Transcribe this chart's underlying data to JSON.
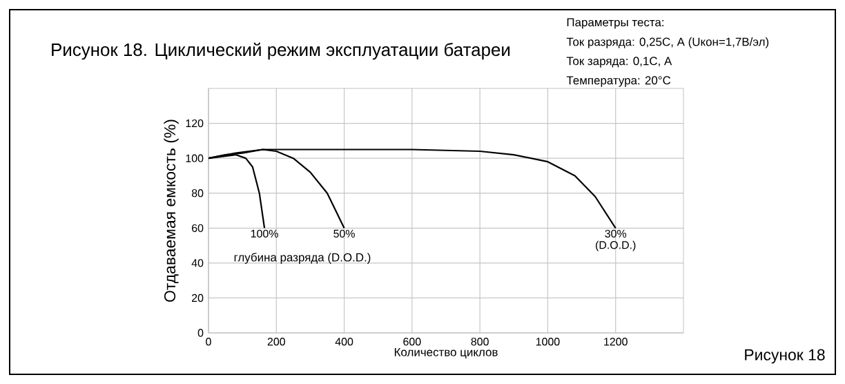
{
  "chart_data": {
    "type": "line",
    "title": "Рисунок 18. Циклический режим эксплуатации батареи",
    "xlabel": "Количество циклов",
    "ylabel": "Отдаваемая емкость (%)",
    "xlim": [
      0,
      1400
    ],
    "ylim": [
      0,
      140
    ],
    "xticks": [
      0,
      200,
      400,
      600,
      800,
      1000,
      1200
    ],
    "yticks": [
      0,
      20,
      40,
      60,
      80,
      100,
      120
    ],
    "grid": true,
    "marker": "none",
    "line_style": "solid",
    "series": [
      {
        "color": "#000000",
        "x": [
          0,
          40,
          80,
          110,
          130,
          150,
          165
        ],
        "values": [
          100,
          101,
          102,
          100,
          95,
          80,
          60
        ]
      },
      {
        "color": "#000000",
        "x": [
          0,
          50,
          100,
          160,
          200,
          250,
          300,
          350,
          380,
          400
        ],
        "values": [
          100,
          102,
          103,
          105,
          104,
          100,
          92,
          80,
          68,
          60
        ]
      },
      {
        "color": "#000000",
        "x": [
          0,
          80,
          160,
          200,
          400,
          600,
          800,
          900,
          1000,
          1080,
          1140,
          1200
        ],
        "values": [
          100,
          103,
          105,
          105,
          105,
          105,
          104,
          102,
          98,
          90,
          78,
          60
        ]
      }
    ],
    "annotations": [
      {
        "text": "100%",
        "x": 165,
        "y": 60
      },
      {
        "text": "50%",
        "x": 400,
        "y": 60
      },
      {
        "text": "30%",
        "x": 1200,
        "y": 60
      },
      {
        "text": "(D.O.D.)",
        "x": 1200,
        "y": 60
      },
      "глубина разряда (D.O.D.)",
      "Параметры теста:",
      "Ток разряда: 0,25C, A (Uкон=1,7В/эл)",
      "Ток заряда: 0,1C, A",
      "Температура: 20°C",
      "Рисунок 18"
    ]
  }
}
